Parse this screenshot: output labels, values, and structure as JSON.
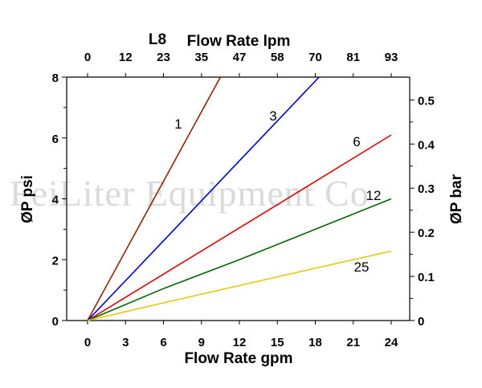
{
  "watermark": "FeiLiter Equipment Co",
  "chart_data": {
    "type": "line",
    "model_label": "L8",
    "xlabel": "Flow Rate gpm",
    "x2label": "Flow Rate lpm",
    "ylabel": "ØP psi",
    "y2label": "ØP bar",
    "xlim": [
      0,
      24
    ],
    "ylim": [
      0,
      8
    ],
    "y2lim": [
      0,
      0.5516
    ],
    "x_ticks": [
      0,
      3,
      6,
      9,
      12,
      15,
      18,
      21,
      24
    ],
    "x2_ticks": [
      0,
      12,
      23,
      35,
      47,
      58,
      70,
      81,
      93
    ],
    "y_ticks": [
      0,
      2,
      4,
      6,
      8
    ],
    "y2_ticks": [
      0,
      0.1,
      0.2,
      0.3,
      0.4,
      0.5
    ],
    "grid": false,
    "legend": "none",
    "series": [
      {
        "name": "1",
        "color": "#8B2500",
        "x": [
          0,
          4,
          8,
          10.5
        ],
        "y": [
          0,
          3.05,
          6.1,
          8.0
        ]
      },
      {
        "name": "3",
        "color": "#0000CC",
        "x": [
          0,
          6,
          12,
          18.3
        ],
        "y": [
          0,
          2.62,
          5.25,
          8.0
        ]
      },
      {
        "name": "6",
        "color": "#DD0000",
        "x": [
          0,
          8,
          16,
          24
        ],
        "y": [
          0,
          2.03,
          4.06,
          6.1
        ]
      },
      {
        "name": "12",
        "color": "#006600",
        "x": [
          0,
          6,
          12,
          18,
          24
        ],
        "y": [
          0,
          1.05,
          2.0,
          3.0,
          4.0
        ]
      },
      {
        "name": "25",
        "color": "#E8C800",
        "x": [
          0,
          6,
          12,
          18,
          24
        ],
        "y": [
          0,
          0.58,
          1.15,
          1.72,
          2.28
        ]
      }
    ]
  }
}
